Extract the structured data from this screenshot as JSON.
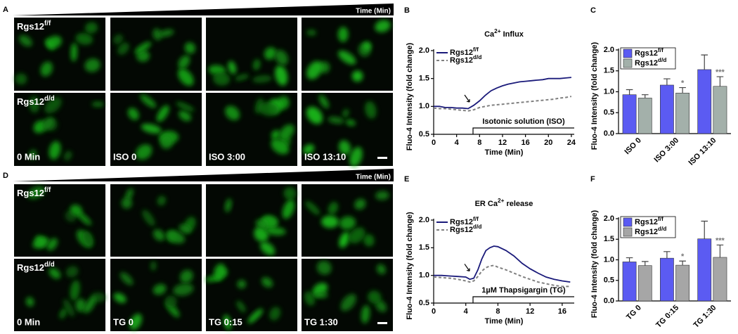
{
  "image_panels": [
    {
      "panel_label": "A",
      "time_label": "Time (Min)",
      "genotypes": [
        "Rgs12f/f",
        "Rgs12d/d"
      ],
      "timepoints": [
        "0 Min",
        "ISO 0",
        "ISO 3:00",
        "ISO 13:10"
      ]
    },
    {
      "panel_label": "D",
      "time_label": "Time (Min)",
      "genotypes": [
        "Rgs12f/f",
        "Rgs12d/d"
      ],
      "timepoints": [
        "0 Min",
        "TG 0",
        "TG 0:15",
        "TG 1:30"
      ]
    }
  ],
  "chart_data": [
    {
      "panel_label": "B",
      "type": "line",
      "title": "Ca2+ Influx",
      "xlabel": "Time (Min)",
      "ylabel": "Fluo-4 Intensity (fold change)",
      "annotation": "Isotonic solution (ISO)",
      "x": [
        0,
        1,
        2,
        3,
        4,
        5,
        6,
        7,
        8,
        9,
        10,
        11,
        12,
        13,
        14,
        15,
        16,
        17,
        18,
        19,
        20,
        21,
        22,
        23,
        24
      ],
      "series": [
        {
          "name": "Rgs12f/f",
          "color": "#1a1a7a",
          "dash": false,
          "values": [
            1.0,
            1.0,
            0.98,
            0.98,
            0.97,
            0.97,
            0.96,
            1.02,
            1.1,
            1.2,
            1.28,
            1.33,
            1.37,
            1.4,
            1.42,
            1.44,
            1.45,
            1.46,
            1.47,
            1.48,
            1.5,
            1.5,
            1.5,
            1.51,
            1.52
          ]
        },
        {
          "name": "Rgs12d/d",
          "color": "#808080",
          "dash": true,
          "values": [
            0.97,
            0.96,
            0.96,
            0.95,
            0.94,
            0.93,
            0.92,
            0.94,
            0.98,
            1.0,
            1.02,
            1.03,
            1.04,
            1.05,
            1.06,
            1.07,
            1.08,
            1.09,
            1.1,
            1.11,
            1.12,
            1.13,
            1.15,
            1.16,
            1.18
          ]
        }
      ],
      "xlim": [
        0,
        24.5
      ],
      "xticks": [
        0,
        4,
        8,
        12,
        16,
        20,
        24
      ],
      "ylim": [
        0.5,
        2.0
      ],
      "yticks": [
        0.5,
        {
          "value": 1.0,
          "label": "1.0"
        },
        1.5,
        {
          "value": 2.0,
          "label": "2.0"
        }
      ]
    },
    {
      "panel_label": "C",
      "type": "bar",
      "ylabel": "Fluo-4 Intensity (fold change)",
      "categories": [
        "ISO 0",
        "ISO 3:00",
        "ISO 13:10"
      ],
      "series": [
        {
          "name": "Rgs12f/f",
          "color": "#5b5bf2",
          "values": [
            0.93,
            1.16,
            1.53
          ],
          "error": [
            0.12,
            0.15,
            0.35
          ]
        },
        {
          "name": "Rgs12d/d",
          "color": "#a3b0aa",
          "values": [
            0.85,
            0.97,
            1.13
          ],
          "error": [
            0.08,
            0.13,
            0.23
          ]
        }
      ],
      "significance": [
        null,
        "*",
        "***"
      ],
      "ylim": [
        0,
        2.0
      ],
      "yticks": [
        {
          "value": 0,
          "label": "0.0"
        },
        0.5,
        {
          "value": 1.0,
          "label": "1.0"
        },
        1.5,
        {
          "value": 2.0,
          "label": "2.0"
        }
      ]
    },
    {
      "panel_label": "E",
      "type": "line",
      "title": "ER Ca2+ release",
      "xlabel": "Time (Min)",
      "ylabel": "Fluo-4 Intensity (fold change)",
      "annotation": "1µM Thapsigargin (TG)",
      "x": [
        0,
        1,
        2,
        3,
        4,
        4.5,
        5,
        5.5,
        6,
        6.5,
        7,
        7.5,
        8,
        9,
        10,
        11,
        12,
        13,
        14,
        15,
        16,
        17
      ],
      "series": [
        {
          "name": "Rgs12f/f",
          "color": "#1a1a7a",
          "dash": false,
          "values": [
            1.0,
            1.0,
            0.99,
            0.98,
            0.97,
            0.93,
            0.95,
            1.1,
            1.3,
            1.45,
            1.5,
            1.53,
            1.52,
            1.45,
            1.35,
            1.22,
            1.12,
            1.04,
            0.97,
            0.93,
            0.9,
            0.88
          ]
        },
        {
          "name": "Rgs12d/d",
          "color": "#808080",
          "dash": true,
          "values": [
            0.97,
            0.96,
            0.95,
            0.93,
            0.9,
            0.88,
            0.9,
            0.98,
            1.08,
            1.14,
            1.17,
            1.18,
            1.15,
            1.1,
            1.04,
            0.98,
            0.93,
            0.88,
            0.85,
            0.82,
            0.8,
            0.8
          ]
        }
      ],
      "xlim": [
        0,
        17.5
      ],
      "xticks": [
        0,
        4,
        8,
        12,
        16
      ],
      "ylim": [
        0.5,
        2.0
      ],
      "yticks": [
        0.5,
        {
          "value": 1.0,
          "label": "1.0"
        },
        1.5,
        {
          "value": 2.0,
          "label": "2.0"
        }
      ]
    },
    {
      "panel_label": "F",
      "type": "bar",
      "ylabel": "Fluo-4 Intensity (fold change)",
      "categories": [
        "TG 0",
        "TG 0:15",
        "TG 1:30"
      ],
      "series": [
        {
          "name": "Rgs12f/f",
          "color": "#5b5bf2",
          "values": [
            0.95,
            1.04,
            1.51
          ],
          "error": [
            0.1,
            0.16,
            0.43
          ]
        },
        {
          "name": "Rgs12d/d",
          "color": "#a6a6a6",
          "values": [
            0.86,
            0.87,
            1.06
          ],
          "error": [
            0.1,
            0.1,
            0.3
          ]
        }
      ],
      "significance": [
        null,
        "*",
        "***"
      ],
      "ylim": [
        0,
        2.0
      ],
      "yticks": [
        {
          "value": 0,
          "label": "0.0"
        },
        0.5,
        {
          "value": 1.0,
          "label": "1.0"
        },
        1.5,
        {
          "value": 2.0,
          "label": "2.0"
        }
      ]
    }
  ]
}
